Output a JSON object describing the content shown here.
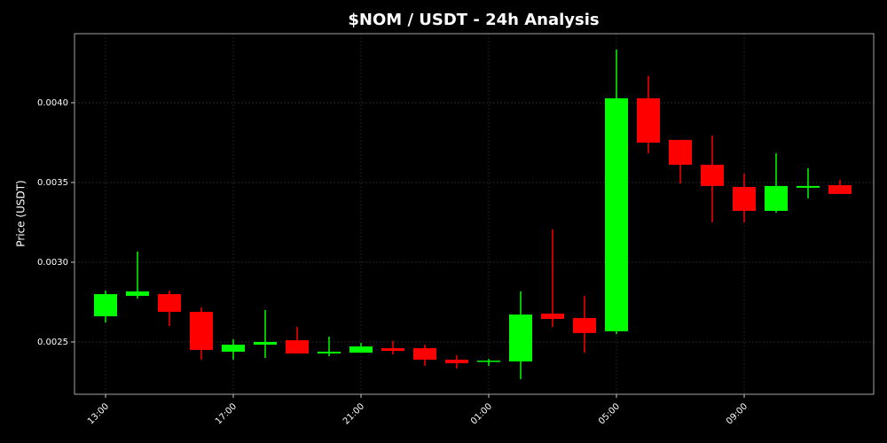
{
  "chart_data": {
    "type": "candlestick",
    "title": "$NOM / USDT - 24h Analysis",
    "y_label": "Price (USDT)",
    "categories": [
      "13:00",
      null,
      null,
      null,
      "17:00",
      null,
      null,
      null,
      "21:00",
      null,
      null,
      null,
      "01:00",
      null,
      null,
      null,
      "05:00",
      null,
      null,
      null,
      "09:00",
      null,
      null,
      null
    ],
    "open": [
      0.002661,
      0.002789,
      0.0028,
      0.002689,
      0.002439,
      0.002483,
      0.002511,
      0.002428,
      0.002433,
      0.002461,
      0.002461,
      0.002389,
      0.002378,
      0.002378,
      0.002678,
      0.00265,
      0.002567,
      0.004028,
      0.003767,
      0.003611,
      0.003472,
      0.003322,
      0.003467,
      0.003483
    ],
    "high": [
      0.002822,
      0.003067,
      0.002822,
      0.002717,
      0.002517,
      0.0027,
      0.002594,
      0.002533,
      0.002494,
      0.002506,
      0.002483,
      0.002417,
      0.002394,
      0.002817,
      0.003206,
      0.002789,
      0.004333,
      0.004167,
      0.003767,
      0.003794,
      0.003556,
      0.003683,
      0.003589,
      0.003517
    ],
    "low": [
      0.002622,
      0.002772,
      0.0026,
      0.002389,
      0.002389,
      0.0024,
      0.002428,
      0.002411,
      0.002433,
      0.002422,
      0.00235,
      0.002333,
      0.00235,
      0.002267,
      0.002594,
      0.002433,
      0.00255,
      0.003683,
      0.003494,
      0.00325,
      0.00325,
      0.003311,
      0.0034,
      0.003428
    ],
    "close": [
      0.0028,
      0.002817,
      0.002689,
      0.00245,
      0.002483,
      0.0025,
      0.002428,
      0.002439,
      0.002472,
      0.002444,
      0.002389,
      0.002367,
      0.002383,
      0.002672,
      0.002644,
      0.002556,
      0.004028,
      0.00375,
      0.003611,
      0.003478,
      0.003322,
      0.003478,
      0.003478,
      0.003428
    ],
    "up_color": "#00ff00",
    "down_color": "#ff0000",
    "ylim": [
      0.002172,
      0.004433
    ],
    "yticks": [
      0.0025,
      {
        "value": 0.003,
        "label": "0.0030"
      },
      0.0035,
      {
        "value": 0.004,
        "label": "0.0040"
      }
    ],
    "grid": true
  }
}
